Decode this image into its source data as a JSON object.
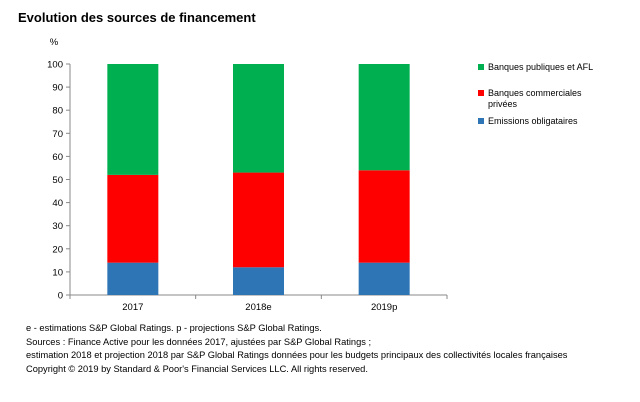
{
  "title": "Evolution des sources de financement",
  "chart_data": {
    "type": "bar",
    "stacked": true,
    "categories": [
      "2017",
      "2018e",
      "2019p"
    ],
    "ylabel": "%",
    "ylim": [
      0,
      100
    ],
    "yticks": [
      0,
      10,
      20,
      30,
      40,
      50,
      60,
      70,
      80,
      90,
      100
    ],
    "grid": false,
    "legend_position": "right",
    "series": [
      {
        "name": "Emissions obligataires",
        "color": "#2e75b6",
        "values": [
          14,
          12,
          14
        ]
      },
      {
        "name": "Banques commerciales privées",
        "color": "#ff0000",
        "values": [
          38,
          41,
          40
        ]
      },
      {
        "name": "Banques publiques et AFL",
        "color": "#00b050",
        "values": [
          48,
          47,
          46
        ]
      }
    ],
    "legend_order": [
      "Banques publiques et AFL",
      "Banques commerciales privées",
      "Emissions obligataires"
    ]
  },
  "footnotes": [
    "e - estimations S&P Global Ratings. p - projections S&P Global Ratings.",
    "Sources : Finance Active pour les données 2017, ajustées par S&P Global Ratings ;",
    "estimation 2018 et projection 2018 par S&P Global Ratings données pour les budgets principaux des collectivités locales françaises",
    "Copyright © 2019 by Standard & Poor's Financial Services LLC. All rights reserved."
  ]
}
